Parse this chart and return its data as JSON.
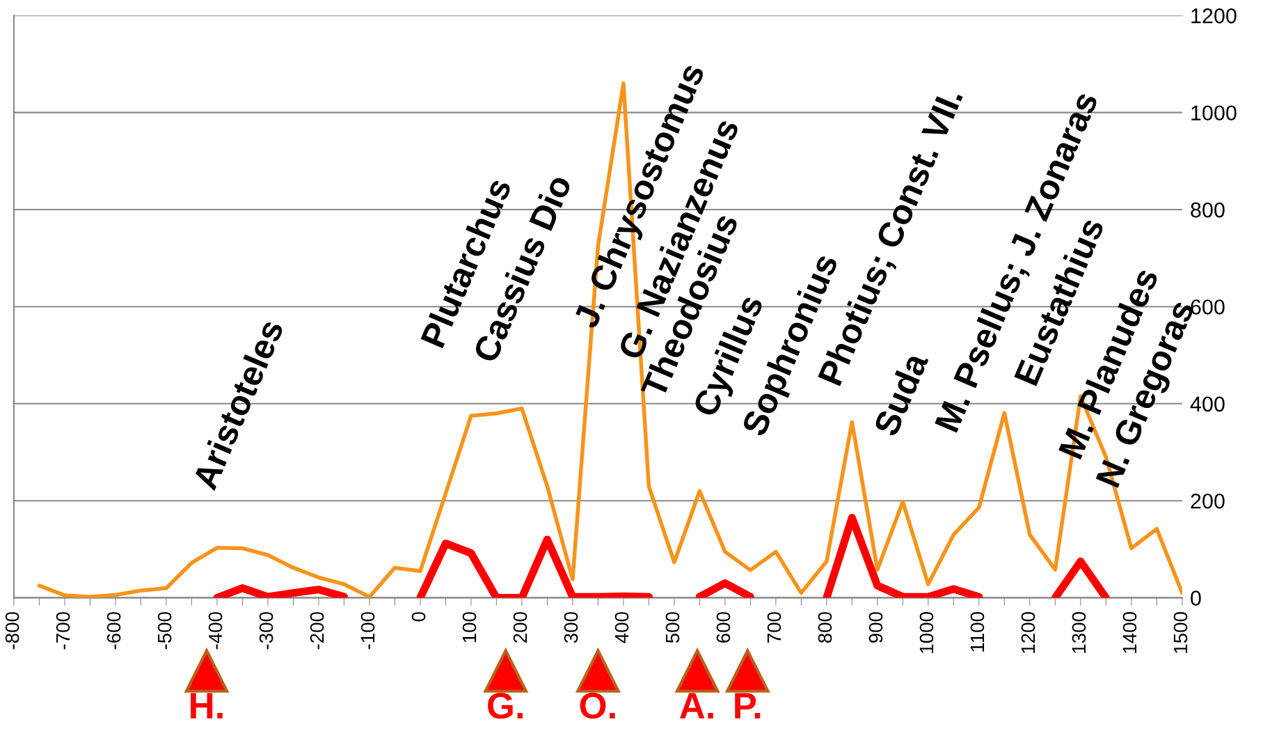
{
  "chart_data": {
    "type": "line",
    "x": [
      -750,
      -700,
      -650,
      -600,
      -550,
      -500,
      -450,
      -400,
      -350,
      -300,
      -250,
      -200,
      -150,
      -100,
      -50,
      0,
      50,
      100,
      150,
      200,
      250,
      300,
      350,
      400,
      450,
      500,
      550,
      600,
      650,
      700,
      750,
      800,
      850,
      900,
      950,
      1000,
      1050,
      1100,
      1150,
      1200,
      1250,
      1300,
      1350,
      1400,
      1450,
      1500
    ],
    "series": [
      {
        "color": "#f7941d",
        "values": [
          25,
          5,
          2,
          6,
          15,
          20,
          72,
          103,
          102,
          88,
          62,
          42,
          28,
          2,
          62,
          55,
          215,
          375,
          380,
          390,
          230,
          38,
          725,
          1060,
          230,
          73,
          220,
          95,
          57,
          95,
          10,
          75,
          362,
          58,
          198,
          28,
          130,
          186,
          381,
          130,
          58,
          415,
          290,
          102,
          142,
          10
        ]
      },
      {
        "color": "#ff0000",
        "values": [
          null,
          null,
          null,
          null,
          null,
          null,
          null,
          0,
          20,
          2,
          10,
          17,
          2,
          null,
          null,
          0,
          112,
          92,
          0,
          0,
          120,
          2,
          2,
          3,
          2,
          null,
          2,
          30,
          2,
          null,
          null,
          0,
          165,
          25,
          2,
          2,
          18,
          2,
          null,
          null,
          0,
          75,
          0,
          null,
          null,
          null
        ]
      }
    ],
    "xlim": [
      -800,
      1500
    ],
    "xticks": [
      -800,
      {
        "value": -750,
        "label": null
      },
      -700,
      {
        "value": -650,
        "label": null
      },
      -600,
      {
        "value": -550,
        "label": null
      },
      -500,
      {
        "value": -450,
        "label": null
      },
      -400,
      {
        "value": -350,
        "label": null
      },
      -300,
      {
        "value": -250,
        "label": null
      },
      -200,
      {
        "value": -150,
        "label": null
      },
      -100,
      {
        "value": -50,
        "label": null
      },
      0,
      {
        "value": 50,
        "label": null
      },
      100,
      {
        "value": 150,
        "label": null
      },
      200,
      {
        "value": 250,
        "label": null
      },
      300,
      {
        "value": 350,
        "label": null
      },
      400,
      {
        "value": 450,
        "label": null
      },
      500,
      {
        "value": 550,
        "label": null
      },
      600,
      {
        "value": 650,
        "label": null
      },
      700,
      {
        "value": 750,
        "label": null
      },
      800,
      {
        "value": 850,
        "label": null
      },
      900,
      {
        "value": 950,
        "label": null
      },
      1000,
      {
        "value": 1050,
        "label": null
      },
      1100,
      {
        "value": 1150,
        "label": null
      },
      1200,
      {
        "value": 1250,
        "label": null
      },
      1300,
      {
        "value": 1350,
        "label": null
      },
      1400,
      {
        "value": 1450,
        "label": null
      },
      1500
    ],
    "ylim": [
      0,
      1200
    ],
    "yticks": [
      0,
      200,
      400,
      600,
      800,
      1000,
      1200
    ],
    "grid": "y",
    "legend": false,
    "marker": "none",
    "line_style": "solid",
    "annotations": [
      "Aristoteles",
      "Plutarchus",
      "Cassius Dio",
      "J. Chrysostomus",
      "G. Nazianzenus",
      "Theodosius",
      "Cyrillus",
      "Sophronius",
      "Photius; Const. VII.",
      "Suda",
      "M. Psellus; J. Zonaras",
      "Eustathius",
      "M. Planudes",
      "N. Gregoras",
      "H.",
      "G.",
      "O.",
      "A.",
      "P."
    ]
  }
}
